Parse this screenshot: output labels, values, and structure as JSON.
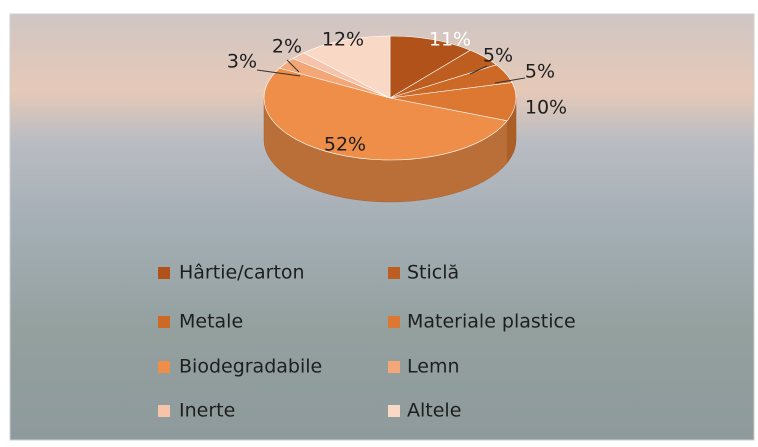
{
  "chart_data": {
    "type": "pie3d",
    "categories": [
      "Hârtie/carton",
      "Sticlă",
      "Metale",
      "Materiale plastice",
      "Biodegradabile",
      "Lemn",
      "Inerte",
      "Altele"
    ],
    "values": [
      11,
      5,
      5,
      10,
      52,
      3,
      2,
      12
    ],
    "value_labels": [
      "11%",
      "5%",
      "5%",
      "10%",
      "52%",
      "3%",
      "2%",
      "12%"
    ],
    "colors": [
      "#b0521a",
      "#bd5e20",
      "#cc6927",
      "#dc7832",
      "#ee8e48",
      "#f3a676",
      "#f6c4aa",
      "#f9d8c6"
    ],
    "legend": "bottom"
  }
}
